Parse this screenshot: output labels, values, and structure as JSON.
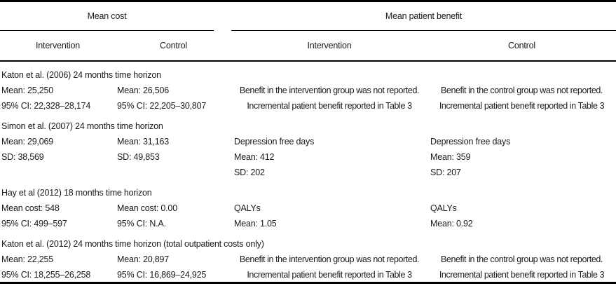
{
  "table": {
    "group_headers": {
      "cost": "Mean cost",
      "benefit": "Mean patient benefit"
    },
    "sub_headers": {
      "cost_intervention": "Intervention",
      "cost_control": "Control",
      "benefit_intervention": "Intervention",
      "benefit_control": "Control"
    },
    "studies": [
      {
        "title": "Katon et al. (2006) 24 months time horizon",
        "cells": [
          {
            "align": "left",
            "lines": [
              "Mean: 25,250",
              "95% CI: 22,328–28,174"
            ]
          },
          {
            "align": "left",
            "lines": [
              "Mean: 26,506",
              "95% CI: 22,205–30,807"
            ]
          },
          {
            "align": "center",
            "lines": [
              "Benefit in the intervention group was not reported.",
              "Incremental patient benefit reported in Table 3"
            ]
          },
          {
            "align": "center",
            "lines": [
              "Benefit in the control group was not reported.",
              "Incremental patient benefit reported in Table 3"
            ]
          }
        ]
      },
      {
        "title": "Simon et al. (2007) 24 months time horizon",
        "cells": [
          {
            "align": "left",
            "lines": [
              "Mean: 29,069",
              "SD: 38,569"
            ]
          },
          {
            "align": "left",
            "lines": [
              "Mean: 31,163",
              "SD: 49,853"
            ]
          },
          {
            "align": "left",
            "lines": [
              "Depression free days",
              "Mean: 412",
              "SD: 202"
            ]
          },
          {
            "align": "left",
            "lines": [
              "Depression free days",
              "Mean: 359",
              "SD: 207"
            ]
          }
        ]
      },
      {
        "title": "Hay et al (2012) 18 months time horizon",
        "cells": [
          {
            "align": "left",
            "lines": [
              "Mean cost: 548",
              "95% CI: 499–597"
            ]
          },
          {
            "align": "left",
            "lines": [
              "Mean cost: 0.00",
              "95% CI: N.A."
            ]
          },
          {
            "align": "left",
            "lines": [
              "QALYs",
              "Mean: 1.05"
            ]
          },
          {
            "align": "left",
            "lines": [
              "QALYs",
              "Mean: 0.92"
            ]
          }
        ]
      },
      {
        "title": "Katon et al. (2012) 24 months time horizon (total outpatient costs only)",
        "cells": [
          {
            "align": "left",
            "lines": [
              "Mean: 22,255",
              "95% CI: 18,255–26,258"
            ]
          },
          {
            "align": "left",
            "lines": [
              "Mean: 20,897",
              "95% CI: 16,869–24,925"
            ]
          },
          {
            "align": "center",
            "lines": [
              "Benefit in the intervention group was not reported.",
              "Incremental patient benefit reported in Table 3"
            ]
          },
          {
            "align": "center",
            "lines": [
              "Benefit in the control group was not reported.",
              "Incremental patient benefit reported in Table 3"
            ]
          }
        ]
      }
    ]
  }
}
